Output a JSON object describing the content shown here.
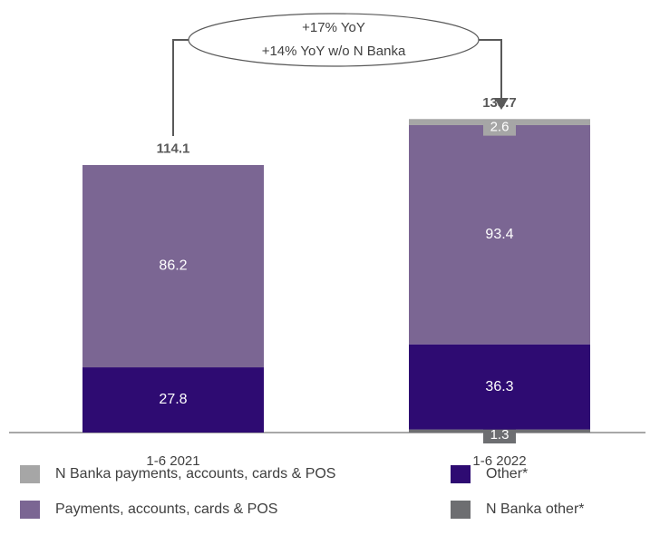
{
  "chart_data": {
    "type": "stacked-bar",
    "categories": [
      "1-6 2021",
      "1-6 2022"
    ],
    "series": [
      {
        "name": "N Banka other*",
        "color": "#6d6e71",
        "values": [
          null,
          1.3
        ]
      },
      {
        "name": "Other*",
        "color": "#2e0b72",
        "values": [
          27.8,
          36.3
        ]
      },
      {
        "name": "Payments, accounts, cards & POS",
        "color": "#7b6693",
        "values": [
          86.2,
          93.4
        ]
      },
      {
        "name": "N Banka payments, accounts, cards & POS",
        "color": "#a6a6a6",
        "values": [
          null,
          2.6
        ]
      }
    ],
    "totals": [
      114.1,
      133.7
    ],
    "annotation": [
      "+17% YoY",
      "+14% YoY w/o N Banka"
    ]
  }
}
